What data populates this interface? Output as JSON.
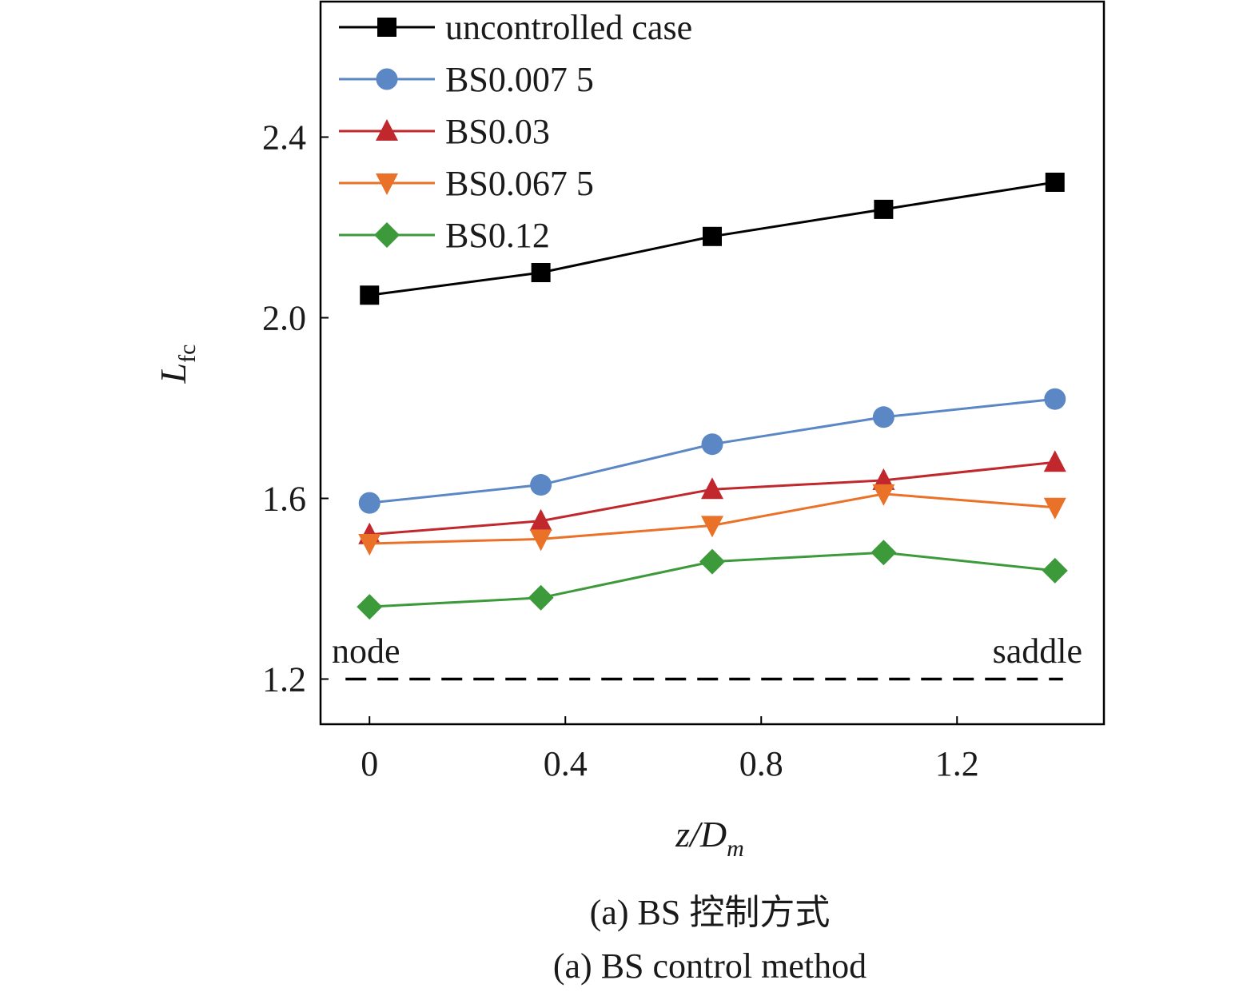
{
  "chart_data": {
    "type": "line",
    "xlabel": "z/D",
    "xlabel_sub": "m",
    "ylabel": "L",
    "ylabel_sub": "fc",
    "xlim": [
      -0.1,
      1.5
    ],
    "ylim": [
      1.1,
      2.7
    ],
    "x_ticks": [
      0,
      0.4,
      0.8,
      1.2
    ],
    "x_tick_labels": [
      "0",
      "0.4",
      "0.8",
      "1.2"
    ],
    "y_ticks": [
      1.2,
      1.6,
      2.0,
      2.4
    ],
    "y_tick_labels": [
      "1.2",
      "1.6",
      "2.0",
      "2.4"
    ],
    "x": [
      0,
      0.35,
      0.7,
      1.05,
      1.4
    ],
    "legend_position": "top-left",
    "series": [
      {
        "name": "uncontrolled case",
        "values": [
          2.05,
          2.1,
          2.18,
          2.24,
          2.3
        ],
        "color": "#000000",
        "marker": "square"
      },
      {
        "name": "BS0.007 5",
        "values": [
          1.59,
          1.63,
          1.72,
          1.78,
          1.82
        ],
        "color": "#5b87c5",
        "marker": "circle"
      },
      {
        "name": "BS0.03",
        "values": [
          1.52,
          1.55,
          1.62,
          1.64,
          1.68
        ],
        "color": "#c0282d",
        "marker": "triangle-up"
      },
      {
        "name": "BS0.067 5",
        "values": [
          1.5,
          1.51,
          1.54,
          1.61,
          1.58
        ],
        "color": "#ea7128",
        "marker": "triangle-down"
      },
      {
        "name": "BS0.12",
        "values": [
          1.36,
          1.38,
          1.46,
          1.48,
          1.44
        ],
        "color": "#3d9a3b",
        "marker": "diamond"
      }
    ],
    "reference_line": {
      "y": 1.2,
      "style": "dashed",
      "color": "#000000"
    },
    "annotations": [
      {
        "text": "node",
        "x": 0,
        "y": 1.2
      },
      {
        "text": "saddle",
        "x": 1.4,
        "y": 1.2
      }
    ]
  },
  "caption": {
    "line1": "(a) BS 控制方式",
    "line2": "(a) BS control method"
  }
}
